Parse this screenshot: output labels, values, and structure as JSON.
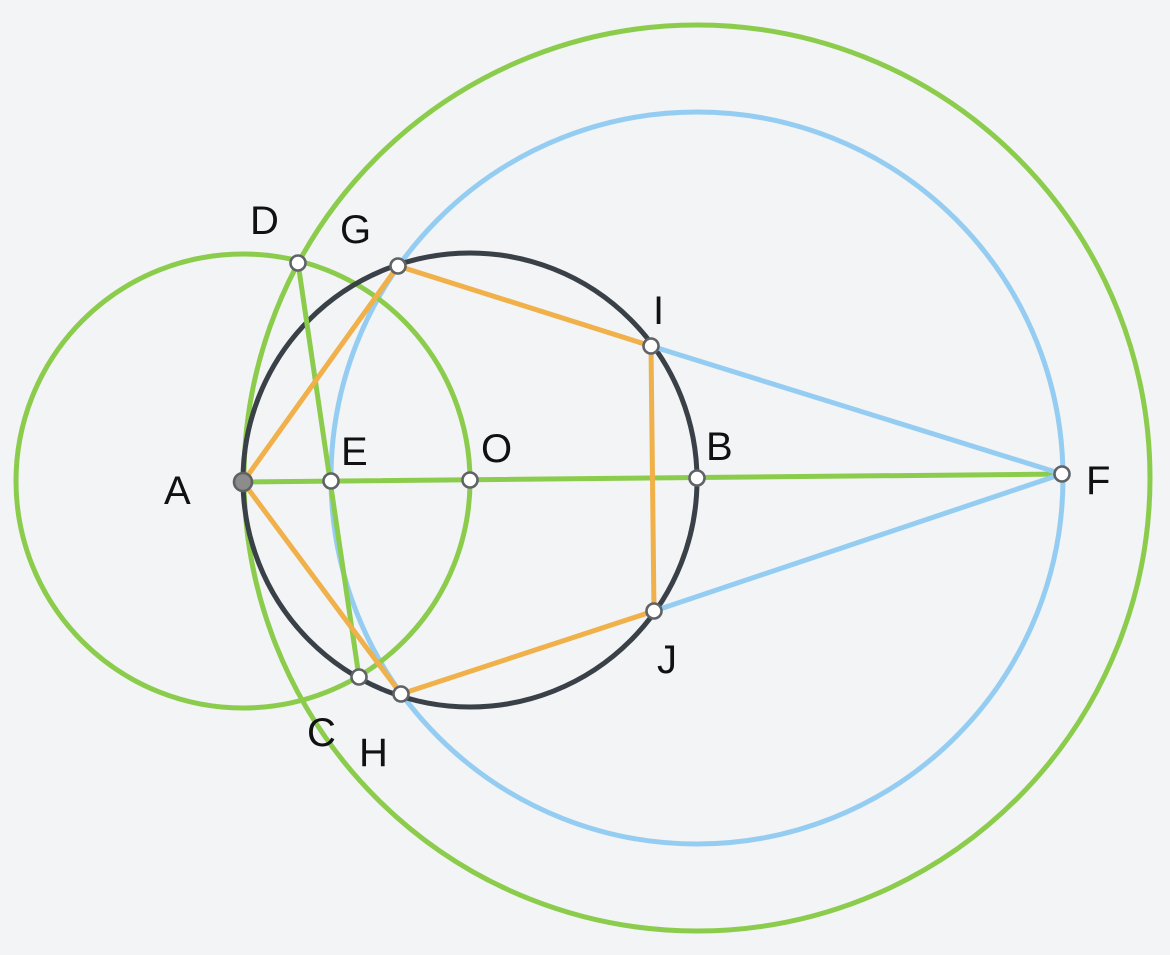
{
  "colors": {
    "background": "#f2f4f5",
    "green": "#8ccc4c",
    "blue": "#95cdf2",
    "dark": "#3a4048",
    "orange": "#f0b04a"
  },
  "labels": {
    "A": "A",
    "B": "B",
    "C": "C",
    "D": "D",
    "E": "E",
    "F": "F",
    "G": "G",
    "H": "H",
    "I": "I",
    "J": "J",
    "O": "O"
  }
}
